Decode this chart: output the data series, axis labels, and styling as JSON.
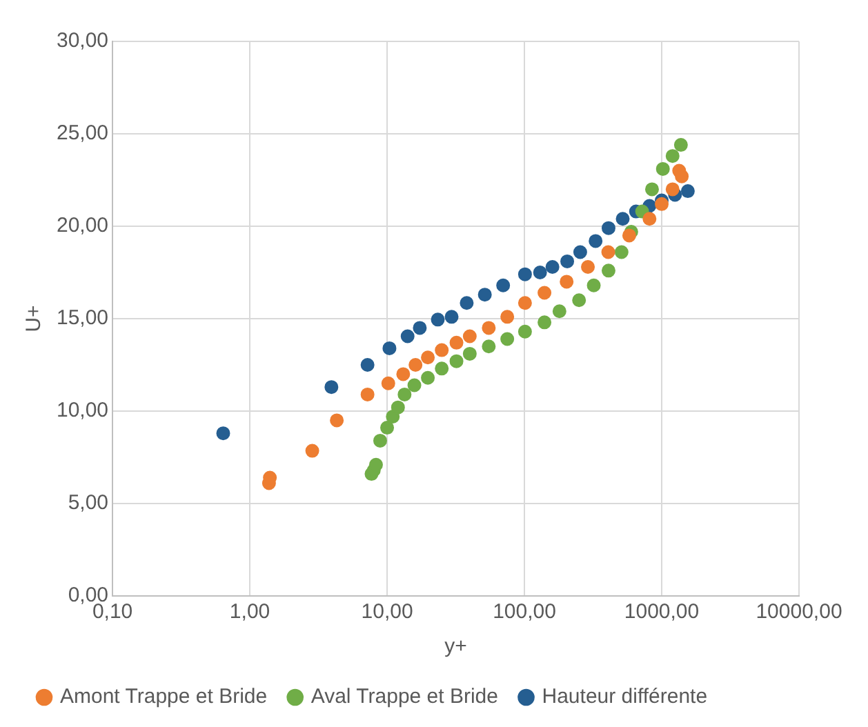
{
  "chart_data": {
    "type": "scatter",
    "xlabel": "y+",
    "ylabel": "U+",
    "log": "x",
    "grid": true,
    "legend": "bottom",
    "marker": "circle",
    "xlim": [
      0.1,
      10000
    ],
    "xticks": [
      {
        "value": 0.1,
        "label": "0,10"
      },
      {
        "value": 1,
        "label": "1,00"
      },
      {
        "value": 10,
        "label": "10,00"
      },
      {
        "value": 100,
        "label": "100,00"
      },
      {
        "value": 1000,
        "label": "1000,00"
      },
      {
        "value": 10000,
        "label": "10000,00"
      }
    ],
    "ylim": [
      0,
      30
    ],
    "yticks": [
      {
        "value": 0,
        "label": "0,00"
      },
      {
        "value": 5,
        "label": "5,00"
      },
      {
        "value": 10,
        "label": "10,00"
      },
      {
        "value": 15,
        "label": "15,00"
      },
      {
        "value": 20,
        "label": "20,00"
      },
      {
        "value": 25,
        "label": "25,00"
      },
      {
        "value": 30,
        "label": "30,00"
      }
    ],
    "series": [
      {
        "name": "Amont Trappe et Bride",
        "color": "#ed7d31",
        "x": [
          1.38,
          1.4,
          2.85,
          4.3,
          7.2,
          10.2,
          13.1,
          16.1,
          19.8,
          25,
          32,
          40,
          55,
          75,
          101,
          140,
          203,
          290,
          408,
          580,
          815,
          1000,
          1200,
          1340,
          1400
        ],
        "values": [
          6.1,
          6.4,
          7.85,
          9.5,
          10.9,
          11.5,
          12.0,
          12.5,
          12.9,
          13.3,
          13.7,
          14.05,
          14.5,
          15.1,
          15.85,
          16.4,
          17.0,
          17.8,
          18.6,
          19.5,
          20.4,
          21.2,
          22.0,
          23.0,
          22.7
        ]
      },
      {
        "name": "Aval Trappe et Bride",
        "color": "#70ad47",
        "x": [
          7.7,
          8.0,
          8.3,
          8.9,
          10,
          11,
          12,
          13.4,
          15.8,
          19.8,
          25,
          32,
          40,
          55,
          75,
          101,
          140,
          180,
          250,
          320,
          410,
          510,
          600,
          720,
          850,
          1020,
          1200,
          1380
        ],
        "values": [
          6.6,
          6.8,
          7.1,
          8.4,
          9.1,
          9.7,
          10.2,
          10.9,
          11.4,
          11.8,
          12.3,
          12.7,
          13.1,
          13.5,
          13.9,
          14.3,
          14.8,
          15.4,
          16.0,
          16.8,
          17.6,
          18.6,
          19.7,
          20.8,
          22.0,
          23.1,
          23.8,
          24.4
        ]
      },
      {
        "name": "Hauteur différente",
        "color": "#255e91",
        "x": [
          0.64,
          3.93,
          7.2,
          10.4,
          14.1,
          17.3,
          23.4,
          29.5,
          38,
          51.5,
          70,
          101,
          130,
          160,
          205,
          255,
          330,
          410,
          520,
          650,
          815,
          1000,
          1250,
          1550
        ],
        "values": [
          8.8,
          11.3,
          12.5,
          13.4,
          14.05,
          14.5,
          14.95,
          15.1,
          15.85,
          16.3,
          16.8,
          17.4,
          17.5,
          17.8,
          18.1,
          18.6,
          19.2,
          19.9,
          20.4,
          20.8,
          21.1,
          21.4,
          21.7,
          21.9
        ]
      }
    ]
  }
}
